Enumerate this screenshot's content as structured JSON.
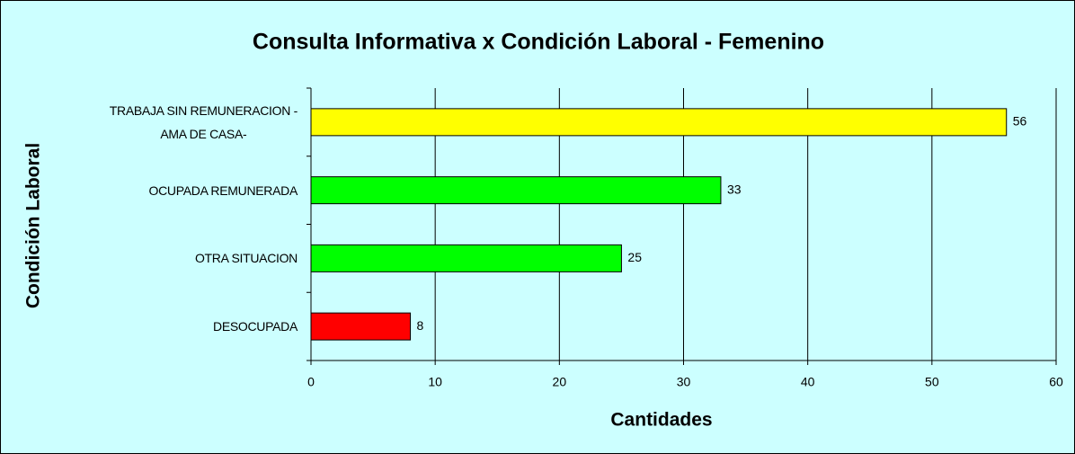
{
  "chart_data": {
    "type": "barh",
    "title": "Consulta Informativa x Condición Laboral - Femenino",
    "x_label": "Cantidades",
    "y_label": "Condición Laboral",
    "categories": [
      "TRABAJA SIN REMUNERACION -\nAMA DE CASA-",
      "OCUPADA REMUNERADA",
      "OTRA SITUACION",
      "DESOCUPADA"
    ],
    "values": [
      56,
      33,
      25,
      8
    ],
    "colors": [
      "#ffff00",
      "#00ff00",
      "#00ff00",
      "#ff0000"
    ],
    "xlim": [
      0,
      60
    ],
    "xticks": [
      0,
      10,
      20,
      30,
      40,
      50,
      60
    ],
    "grid": true
  }
}
